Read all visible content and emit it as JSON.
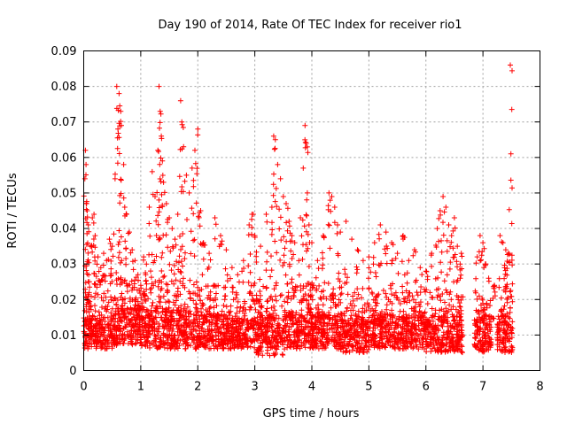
{
  "chart_data": {
    "type": "scatter",
    "title": "Day 190 of 2014, Rate Of TEC Index for receiver rio1",
    "xlabel": "GPS time / hours",
    "ylabel": "ROTI / TECUs",
    "xlim": [
      0,
      8
    ],
    "ylim": [
      0,
      0.09
    ],
    "xticks": [
      0,
      1,
      2,
      3,
      4,
      5,
      6,
      7,
      8
    ],
    "xtick_labels": [
      "0",
      "1",
      "2",
      "3",
      "4",
      "5",
      "6",
      "7",
      "8"
    ],
    "yticks": [
      0,
      0.01,
      0.02,
      0.03,
      0.04,
      0.05,
      0.06,
      0.07,
      0.08,
      0.09
    ],
    "ytick_labels": [
      "0",
      "0.01",
      "0.02",
      "0.03",
      "0.04",
      "0.05",
      "0.06",
      "0.07",
      "0.08",
      "0.09"
    ],
    "grid": true,
    "marker": "+",
    "color": "#ff0000",
    "series": [
      {
        "name": "ROTI",
        "points": [
          [
            0.02,
            0.054
          ],
          [
            0.03,
            0.062
          ],
          [
            0.04,
            0.058
          ],
          [
            0.05,
            0.047
          ],
          [
            0.06,
            0.045
          ],
          [
            0.08,
            0.041
          ],
          [
            0.1,
            0.025
          ],
          [
            0.12,
            0.035
          ],
          [
            0.15,
            0.043
          ],
          [
            0.18,
            0.044
          ],
          [
            0.2,
            0.038
          ],
          [
            0.25,
            0.032
          ],
          [
            0.3,
            0.029
          ],
          [
            0.35,
            0.033
          ],
          [
            0.4,
            0.031
          ],
          [
            0.45,
            0.037
          ],
          [
            0.5,
            0.035
          ],
          [
            0.55,
            0.054
          ],
          [
            0.58,
            0.08
          ],
          [
            0.6,
            0.068
          ],
          [
            0.62,
            0.078
          ],
          [
            0.65,
            0.073
          ],
          [
            0.66,
            0.069
          ],
          [
            0.7,
            0.058
          ],
          [
            0.72,
            0.046
          ],
          [
            0.75,
            0.044
          ],
          [
            0.8,
            0.039
          ],
          [
            0.85,
            0.034
          ],
          [
            0.9,
            0.031
          ],
          [
            0.95,
            0.027
          ],
          [
            1.0,
            0.024
          ],
          [
            1.05,
            0.032
          ],
          [
            1.1,
            0.03
          ],
          [
            1.15,
            0.046
          ],
          [
            1.2,
            0.056
          ],
          [
            1.25,
            0.049
          ],
          [
            1.3,
            0.062
          ],
          [
            1.32,
            0.08
          ],
          [
            1.34,
            0.073
          ],
          [
            1.36,
            0.066
          ],
          [
            1.38,
            0.059
          ],
          [
            1.4,
            0.053
          ],
          [
            1.45,
            0.047
          ],
          [
            1.5,
            0.043
          ],
          [
            1.55,
            0.04
          ],
          [
            1.6,
            0.037
          ],
          [
            1.65,
            0.044
          ],
          [
            1.7,
            0.076
          ],
          [
            1.72,
            0.07
          ],
          [
            1.75,
            0.063
          ],
          [
            1.8,
            0.055
          ],
          [
            1.85,
            0.05
          ],
          [
            1.9,
            0.057
          ],
          [
            1.95,
            0.062
          ],
          [
            2.0,
            0.068
          ],
          [
            2.05,
            0.045
          ],
          [
            2.1,
            0.036
          ],
          [
            2.2,
            0.033
          ],
          [
            2.3,
            0.043
          ],
          [
            2.4,
            0.038
          ],
          [
            2.5,
            0.034
          ],
          [
            2.6,
            0.029
          ],
          [
            2.7,
            0.027
          ],
          [
            2.8,
            0.031
          ],
          [
            2.9,
            0.041
          ],
          [
            2.95,
            0.044
          ],
          [
            3.0,
            0.038
          ],
          [
            3.1,
            0.035
          ],
          [
            3.2,
            0.044
          ],
          [
            3.3,
            0.046
          ],
          [
            3.33,
            0.066
          ],
          [
            3.36,
            0.065
          ],
          [
            3.4,
            0.058
          ],
          [
            3.45,
            0.054
          ],
          [
            3.5,
            0.049
          ],
          [
            3.55,
            0.047
          ],
          [
            3.6,
            0.042
          ],
          [
            3.65,
            0.038
          ],
          [
            3.7,
            0.036
          ],
          [
            3.8,
            0.043
          ],
          [
            3.85,
            0.057
          ],
          [
            3.88,
            0.069
          ],
          [
            3.9,
            0.064
          ],
          [
            3.92,
            0.05
          ],
          [
            3.95,
            0.041
          ],
          [
            4.0,
            0.036
          ],
          [
            4.1,
            0.031
          ],
          [
            4.2,
            0.038
          ],
          [
            4.3,
            0.05
          ],
          [
            4.35,
            0.049
          ],
          [
            4.4,
            0.046
          ],
          [
            4.45,
            0.041
          ],
          [
            4.5,
            0.039
          ],
          [
            4.6,
            0.042
          ],
          [
            4.7,
            0.037
          ],
          [
            4.8,
            0.034
          ],
          [
            4.9,
            0.031
          ],
          [
            5.0,
            0.032
          ],
          [
            5.1,
            0.036
          ],
          [
            5.2,
            0.041
          ],
          [
            5.3,
            0.039
          ],
          [
            5.4,
            0.036
          ],
          [
            5.5,
            0.033
          ],
          [
            5.6,
            0.038
          ],
          [
            5.7,
            0.031
          ],
          [
            5.8,
            0.034
          ],
          [
            5.9,
            0.029
          ],
          [
            6.0,
            0.028
          ],
          [
            6.1,
            0.033
          ],
          [
            6.2,
            0.04
          ],
          [
            6.25,
            0.045
          ],
          [
            6.3,
            0.049
          ],
          [
            6.35,
            0.046
          ],
          [
            6.4,
            0.041
          ],
          [
            6.45,
            0.038
          ],
          [
            6.5,
            0.043
          ],
          [
            6.55,
            0.035
          ],
          [
            6.6,
            0.03
          ],
          [
            6.62,
            0.033
          ],
          [
            6.9,
            0.032
          ],
          [
            6.95,
            0.038
          ],
          [
            7.0,
            0.036
          ],
          [
            7.05,
            0.03
          ],
          [
            7.1,
            0.026
          ],
          [
            7.2,
            0.024
          ],
          [
            7.3,
            0.038
          ],
          [
            7.35,
            0.036
          ],
          [
            7.4,
            0.034
          ],
          [
            7.45,
            0.033
          ],
          [
            7.48,
            0.086
          ],
          [
            7.49,
            0.061
          ]
        ]
      }
    ],
    "dense_band": {
      "description": "background density of points",
      "segments": [
        {
          "x": [
            0.0,
            0.5
          ],
          "y": [
            0.006,
            0.022
          ]
        },
        {
          "x": [
            0.5,
            1.0
          ],
          "y": [
            0.007,
            0.026
          ]
        },
        {
          "x": [
            1.0,
            1.5
          ],
          "y": [
            0.006,
            0.027
          ]
        },
        {
          "x": [
            1.5,
            2.0
          ],
          "y": [
            0.006,
            0.026
          ]
        },
        {
          "x": [
            2.0,
            2.5
          ],
          "y": [
            0.006,
            0.024
          ]
        },
        {
          "x": [
            2.5,
            3.0
          ],
          "y": [
            0.006,
            0.022
          ]
        },
        {
          "x": [
            3.0,
            3.5
          ],
          "y": [
            0.004,
            0.024
          ]
        },
        {
          "x": [
            3.5,
            4.0
          ],
          "y": [
            0.006,
            0.025
          ]
        },
        {
          "x": [
            4.0,
            4.5
          ],
          "y": [
            0.006,
            0.024
          ]
        },
        {
          "x": [
            4.5,
            5.0
          ],
          "y": [
            0.005,
            0.022
          ]
        },
        {
          "x": [
            5.0,
            5.5
          ],
          "y": [
            0.006,
            0.024
          ]
        },
        {
          "x": [
            5.5,
            6.0
          ],
          "y": [
            0.006,
            0.023
          ]
        },
        {
          "x": [
            6.0,
            6.65
          ],
          "y": [
            0.005,
            0.024
          ]
        },
        {
          "x": [
            6.85,
            7.15
          ],
          "y": [
            0.005,
            0.024
          ]
        },
        {
          "x": [
            7.25,
            7.52
          ],
          "y": [
            0.005,
            0.025
          ]
        }
      ]
    }
  }
}
